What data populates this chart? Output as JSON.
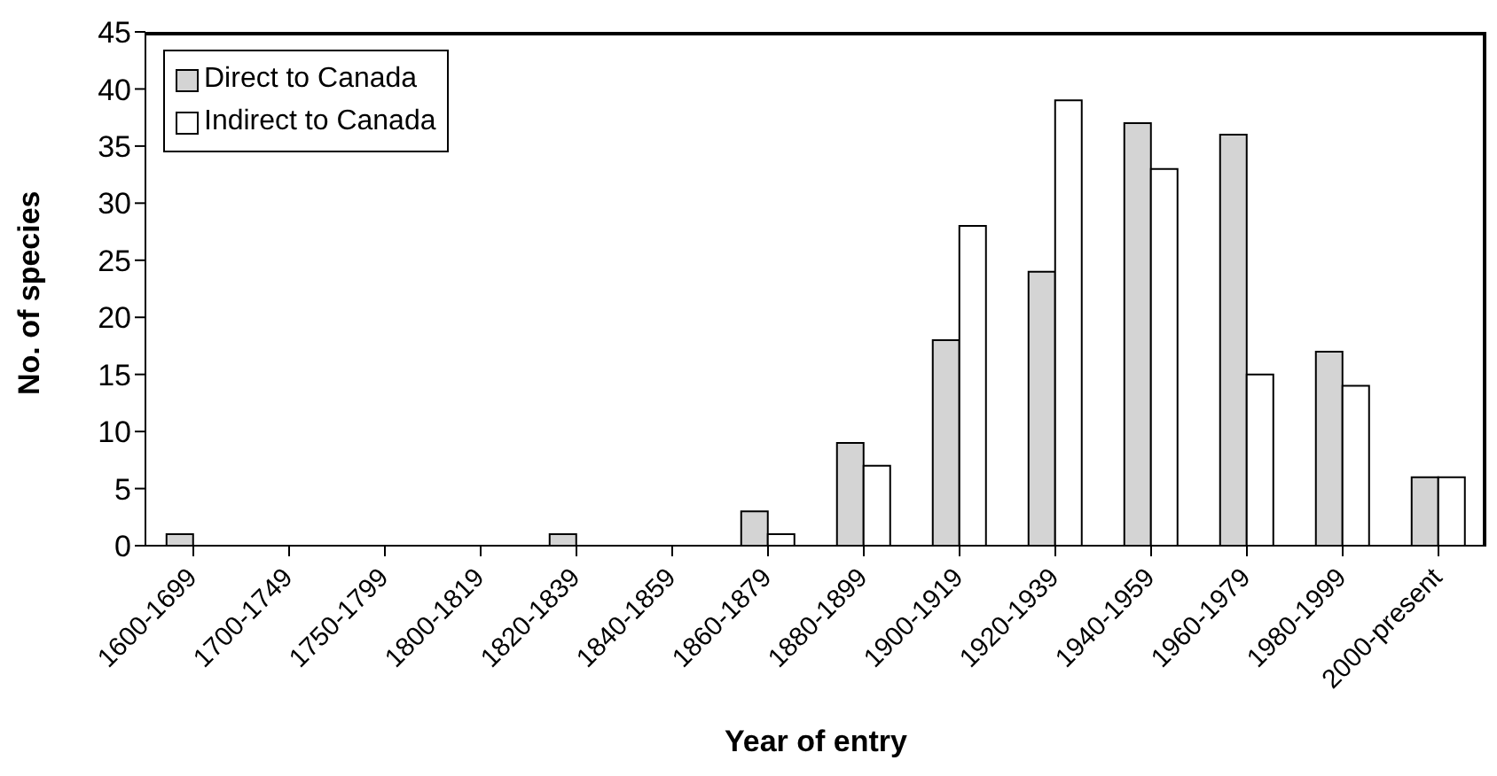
{
  "chart_data": {
    "type": "bar",
    "xlabel": "Year of entry",
    "ylabel": "No. of species",
    "categories": [
      "1600-1699",
      "1700-1749",
      "1750-1799",
      "1800-1819",
      "1820-1839",
      "1840-1859",
      "1860-1879",
      "1880-1899",
      "1900-1919",
      "1920-1939",
      "1940-1959",
      "1960-1979",
      "1980-1999",
      "2000-present"
    ],
    "series": [
      {
        "name": "Direct to Canada",
        "color": "#d4d4d4",
        "values": [
          1,
          0,
          0,
          0,
          1,
          0,
          3,
          9,
          18,
          24,
          37,
          36,
          17,
          6
        ]
      },
      {
        "name": "Indirect to Canada",
        "color": "#ffffff",
        "values": [
          0,
          0,
          0,
          0,
          0,
          0,
          1,
          7,
          28,
          39,
          33,
          15,
          14,
          6
        ]
      }
    ],
    "ylim": [
      0,
      45
    ],
    "yticks": [
      0,
      5,
      10,
      15,
      20,
      25,
      30,
      35,
      40,
      45
    ],
    "grid": false,
    "legend": "top left"
  }
}
